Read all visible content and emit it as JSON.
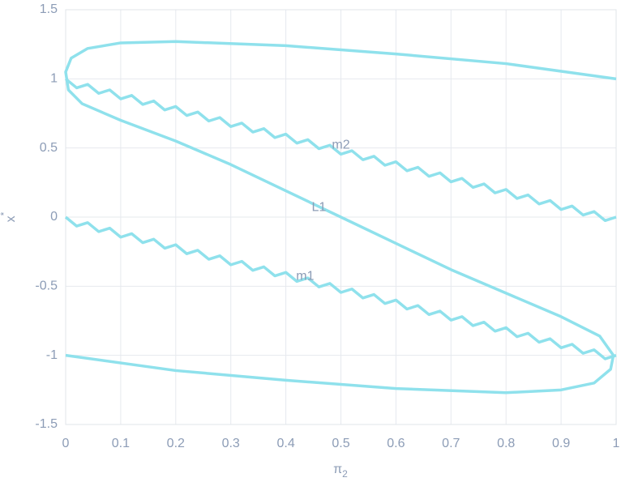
{
  "chart_data": {
    "type": "line",
    "xlabel": {
      "base": "π",
      "sub": "2"
    },
    "ylabel": {
      "base": "x",
      "sup": "*"
    },
    "xlim": [
      0,
      1
    ],
    "ylim": [
      -1.5,
      1.5
    ],
    "xticks": [
      0,
      0.1,
      0.2,
      0.3,
      0.4,
      0.5,
      0.6,
      0.7,
      0.8,
      0.9,
      1
    ],
    "yticks": [
      -1.5,
      -1,
      -0.5,
      0,
      0.5,
      1,
      1.5
    ],
    "grid": true,
    "series": [
      {
        "name": "L1",
        "color": "#8fe1ec",
        "x": [
          1,
          0.8,
          0.6,
          0.4,
          0.2,
          0.1,
          0.04,
          0.01,
          0,
          0.005,
          0.03,
          0.1,
          0.2,
          0.3,
          0.4,
          0.5,
          0.6,
          0.7,
          0.8,
          0.9,
          0.97,
          0.995,
          0.99,
          0.96,
          0.9,
          0.8,
          0.6,
          0.4,
          0.2,
          0
        ],
        "values": [
          1,
          1.11,
          1.18,
          1.24,
          1.27,
          1.26,
          1.22,
          1.15,
          1.05,
          0.92,
          0.82,
          0.7,
          0.55,
          0.38,
          0.19,
          0,
          -0.19,
          -0.38,
          -0.55,
          -0.72,
          -0.86,
          -1,
          -1.1,
          -1.2,
          -1.25,
          -1.27,
          -1.24,
          -1.18,
          -1.11,
          -1
        ]
      },
      {
        "name": "m2",
        "color": "#8fe1ec",
        "x": [
          0,
          0.02,
          0.04,
          0.06,
          0.08,
          0.1,
          0.12,
          0.14,
          0.16,
          0.18,
          0.2,
          0.22,
          0.24,
          0.26,
          0.28,
          0.3,
          0.32,
          0.34,
          0.36,
          0.38,
          0.4,
          0.42,
          0.44,
          0.46,
          0.48,
          0.5,
          0.52,
          0.54,
          0.56,
          0.58,
          0.6,
          0.62,
          0.64,
          0.66,
          0.68,
          0.7,
          0.72,
          0.74,
          0.76,
          0.78,
          0.8,
          0.82,
          0.84,
          0.86,
          0.88,
          0.9,
          0.92,
          0.94,
          0.96,
          0.98,
          1
        ],
        "values": [
          1,
          0.935,
          0.96,
          0.895,
          0.92,
          0.855,
          0.88,
          0.815,
          0.84,
          0.775,
          0.8,
          0.735,
          0.76,
          0.695,
          0.72,
          0.655,
          0.68,
          0.615,
          0.64,
          0.575,
          0.6,
          0.535,
          0.56,
          0.495,
          0.52,
          0.455,
          0.48,
          0.415,
          0.44,
          0.375,
          0.4,
          0.335,
          0.36,
          0.295,
          0.32,
          0.255,
          0.28,
          0.215,
          0.24,
          0.175,
          0.2,
          0.135,
          0.16,
          0.095,
          0.12,
          0.055,
          0.08,
          0.015,
          0.04,
          -0.025,
          0
        ]
      },
      {
        "name": "m1",
        "color": "#8fe1ec",
        "x": [
          0,
          0.02,
          0.04,
          0.06,
          0.08,
          0.1,
          0.12,
          0.14,
          0.16,
          0.18,
          0.2,
          0.22,
          0.24,
          0.26,
          0.28,
          0.3,
          0.32,
          0.34,
          0.36,
          0.38,
          0.4,
          0.42,
          0.44,
          0.46,
          0.48,
          0.5,
          0.52,
          0.54,
          0.56,
          0.58,
          0.6,
          0.62,
          0.64,
          0.66,
          0.68,
          0.7,
          0.72,
          0.74,
          0.76,
          0.78,
          0.8,
          0.82,
          0.84,
          0.86,
          0.88,
          0.9,
          0.92,
          0.94,
          0.96,
          0.98,
          1
        ],
        "values": [
          0,
          -0.065,
          -0.04,
          -0.105,
          -0.08,
          -0.145,
          -0.12,
          -0.185,
          -0.16,
          -0.225,
          -0.2,
          -0.265,
          -0.24,
          -0.305,
          -0.28,
          -0.345,
          -0.32,
          -0.385,
          -0.36,
          -0.425,
          -0.4,
          -0.465,
          -0.44,
          -0.505,
          -0.48,
          -0.545,
          -0.52,
          -0.585,
          -0.56,
          -0.625,
          -0.6,
          -0.665,
          -0.64,
          -0.705,
          -0.68,
          -0.745,
          -0.72,
          -0.785,
          -0.76,
          -0.825,
          -0.8,
          -0.865,
          -0.84,
          -0.905,
          -0.88,
          -0.945,
          -0.92,
          -0.985,
          -0.96,
          -1.025,
          -1
        ]
      }
    ],
    "annotations": [
      {
        "text": "m2",
        "x": 0.5,
        "y": 0.52
      },
      {
        "text": "L1",
        "x": 0.46,
        "y": 0.07
      },
      {
        "text": "m1",
        "x": 0.435,
        "y": -0.43
      }
    ]
  }
}
